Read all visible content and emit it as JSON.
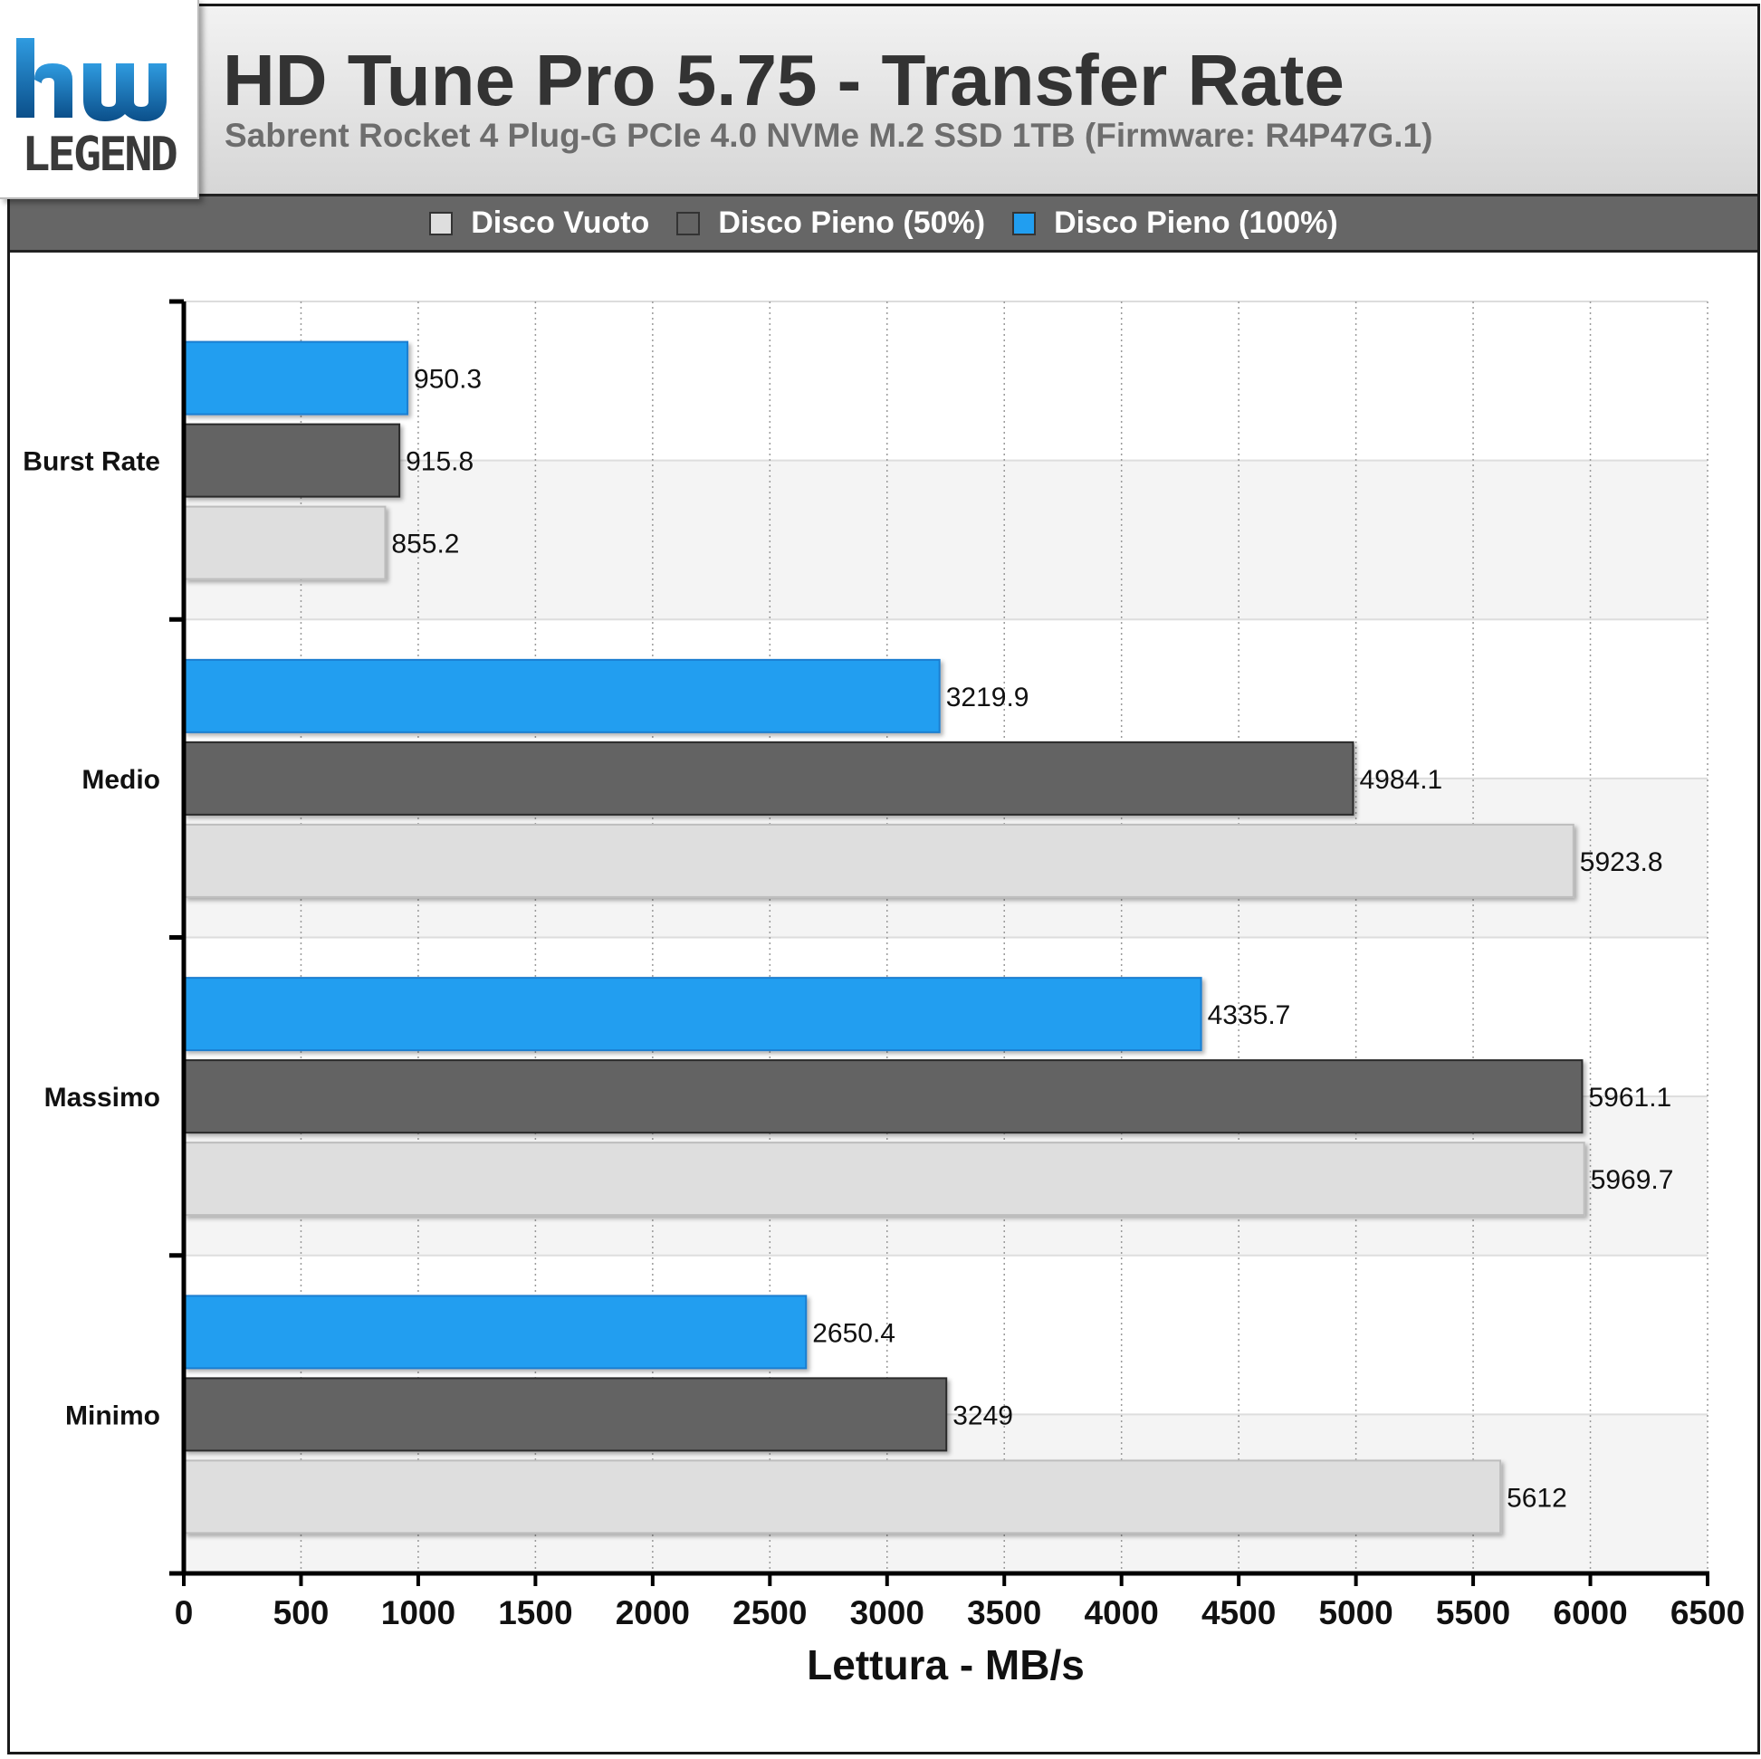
{
  "header": {
    "title": "HD Tune Pro 5.75 - Transfer Rate",
    "subtitle": "Sabrent Rocket 4 Plug-G PCIe 4.0 NVMe M.2 SSD 1TB (Firmware: R4P47G.1)",
    "logo_text": "hw LEGEND"
  },
  "colors": {
    "disco_vuoto": "#dedede",
    "disco_pieno_50": "#646464",
    "disco_pieno_100": "#219ef0",
    "logo_blue": "#1f7fc7"
  },
  "legend": [
    {
      "label": "Disco Vuoto",
      "color": "#dedede"
    },
    {
      "label": "Disco Pieno (50%)",
      "color": "#646464"
    },
    {
      "label": "Disco Pieno (100%)",
      "color": "#219ef0"
    }
  ],
  "chart_data": {
    "type": "bar",
    "orientation": "horizontal",
    "title": "HD Tune Pro 5.75 - Transfer Rate",
    "subtitle": "Sabrent Rocket 4 Plug-G PCIe 4.0 NVMe M.2 SSD 1TB (Firmware: R4P47G.1)",
    "xlabel": "Lettura - MB/s",
    "ylabel": "",
    "xlim": [
      0,
      6500
    ],
    "xticks": [
      0,
      500,
      1000,
      1500,
      2000,
      2500,
      3000,
      3500,
      4000,
      4500,
      5000,
      5500,
      6000,
      6500
    ],
    "grid": true,
    "legend_position": "top",
    "categories": [
      "Burst Rate",
      "Medio",
      "Massimo",
      "Minimo"
    ],
    "series": [
      {
        "name": "Disco Pieno (100%)",
        "color": "#219ef0",
        "values": [
          "950.3",
          "3219.9",
          "4335.7",
          "2650.4"
        ]
      },
      {
        "name": "Disco Pieno (50%)",
        "color": "#646464",
        "values": [
          "915.8",
          "4984.1",
          "5961.1",
          "3249"
        ]
      },
      {
        "name": "Disco Vuoto",
        "color": "#dedede",
        "values": [
          "855.2",
          "5923.8",
          "5969.7",
          "5612"
        ]
      }
    ]
  }
}
